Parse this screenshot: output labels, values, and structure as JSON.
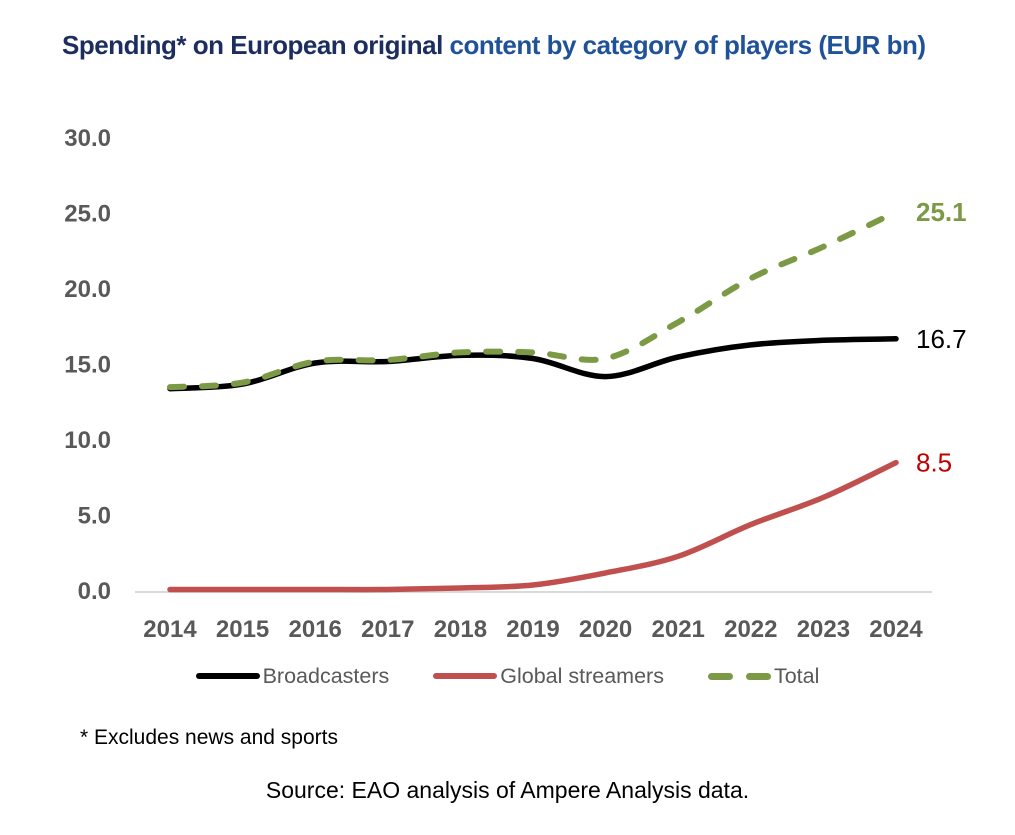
{
  "title": {
    "part1": "Spending* on European original ",
    "part2": "content by category of players (EUR bn)",
    "part1_color": "#1c2d5f",
    "part2_color": "#1f5299"
  },
  "chart_data": {
    "type": "line",
    "x": [
      2014,
      2015,
      2016,
      2017,
      2018,
      2019,
      2020,
      2021,
      2022,
      2023,
      2024
    ],
    "series": [
      {
        "name": "Broadcasters",
        "color": "#000000",
        "style": "solid",
        "values": [
          13.4,
          13.7,
          15.1,
          15.2,
          15.6,
          15.4,
          14.2,
          15.5,
          16.3,
          16.6,
          16.7
        ],
        "end_label": "16.7",
        "end_label_color": "#000000",
        "end_label_bold": false
      },
      {
        "name": "Global streamers",
        "color": "#c0504d",
        "style": "solid",
        "values": [
          0.1,
          0.1,
          0.1,
          0.1,
          0.2,
          0.4,
          1.2,
          2.3,
          4.4,
          6.2,
          8.5
        ],
        "end_label": "8.5",
        "end_label_color": "#c00000",
        "end_label_bold": false
      },
      {
        "name": "Total",
        "color": "#7c9a45",
        "style": "dashed",
        "values": [
          13.5,
          13.8,
          15.2,
          15.3,
          15.8,
          15.8,
          15.4,
          17.8,
          20.7,
          22.8,
          25.1
        ],
        "end_label": "25.1",
        "end_label_color": "#7c9a45",
        "end_label_bold": true
      }
    ],
    "ylim": [
      0,
      30
    ],
    "ytick_step": 5,
    "yticks": [
      "0.0",
      "5.0",
      "10.0",
      "15.0",
      "20.0",
      "25.0",
      "30.0"
    ],
    "grid": false,
    "axis_line_color": "#d9d9d9",
    "tick_label_color": "#595959",
    "legend_position": "bottom"
  },
  "footnote": "* Excludes news and sports",
  "source": "Source: EAO analysis of Ampere Analysis data."
}
